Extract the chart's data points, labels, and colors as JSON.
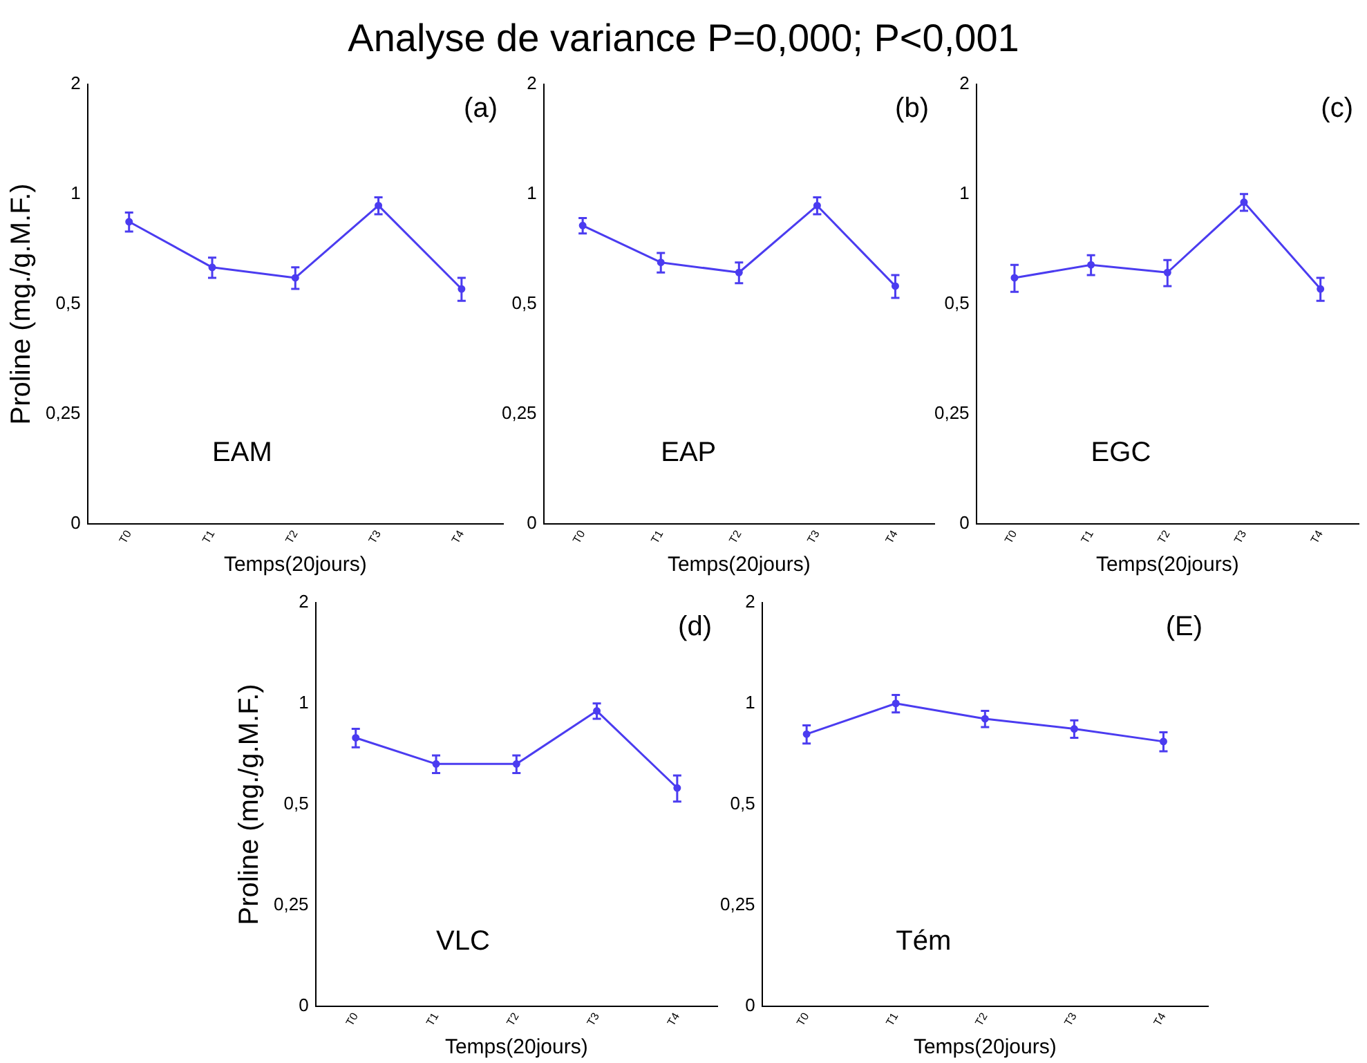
{
  "chart_data": [
    {
      "type": "line",
      "title": "Analyse de variance P=0,000; P<0,001",
      "categories": [
        "T0",
        "T1",
        "T2",
        "T3",
        "T4"
      ],
      "values": [
        0.84,
        0.63,
        0.59,
        0.93,
        0.55
      ],
      "errors": [
        0.05,
        0.04,
        0.04,
        0.05,
        0.04
      ],
      "color": "#4b3cf0",
      "marker": "circle",
      "log": true,
      "ylim": [
        0.125,
        2
      ],
      "yticks": [
        {
          "value": 0.125,
          "label": "0"
        },
        {
          "value": 0.25,
          "label": "0,25"
        },
        {
          "value": 0.5,
          "label": "0,5"
        },
        {
          "value": 1,
          "label": "1"
        },
        {
          "value": 2,
          "label": "2"
        }
      ],
      "xlabel": "Temps(20jours)",
      "ylabel": "Proline (mg./g.M.F.)",
      "annotations": [
        "(a)",
        "EAM"
      ]
    },
    {
      "type": "line",
      "categories": [
        "T0",
        "T1",
        "T2",
        "T3",
        "T4"
      ],
      "values": [
        0.82,
        0.65,
        0.61,
        0.93,
        0.56
      ],
      "errors": [
        0.04,
        0.04,
        0.04,
        0.05,
        0.04
      ],
      "color": "#4b3cf0",
      "marker": "circle",
      "log": true,
      "ylim": [
        0.125,
        2
      ],
      "yticks": [
        {
          "value": 0.125,
          "label": "0"
        },
        {
          "value": 0.25,
          "label": "0,25"
        },
        {
          "value": 0.5,
          "label": "0,5"
        },
        {
          "value": 1,
          "label": "1"
        },
        {
          "value": 2,
          "label": "2"
        }
      ],
      "xlabel": "Temps(20jours)",
      "annotations": [
        "(b)",
        "EAP"
      ]
    },
    {
      "type": "line",
      "categories": [
        "T0",
        "T1",
        "T2",
        "T3",
        "T4"
      ],
      "values": [
        0.59,
        0.64,
        0.61,
        0.95,
        0.55
      ],
      "errors": [
        0.05,
        0.04,
        0.05,
        0.05,
        0.04
      ],
      "color": "#4b3cf0",
      "marker": "circle",
      "log": true,
      "ylim": [
        0.125,
        2
      ],
      "yticks": [
        {
          "value": 0.125,
          "label": "0"
        },
        {
          "value": 0.25,
          "label": "0,25"
        },
        {
          "value": 0.5,
          "label": "0,5"
        },
        {
          "value": 1,
          "label": "1"
        },
        {
          "value": 2,
          "label": "2"
        }
      ],
      "xlabel": "Temps(20jours)",
      "annotations": [
        "(c)",
        "EGC"
      ]
    },
    {
      "type": "line",
      "categories": [
        "T0",
        "T1",
        "T2",
        "T3",
        "T4"
      ],
      "values": [
        0.79,
        0.66,
        0.66,
        0.95,
        0.56
      ],
      "errors": [
        0.05,
        0.04,
        0.04,
        0.05,
        0.05
      ],
      "color": "#4b3cf0",
      "marker": "circle",
      "log": true,
      "ylim": [
        0.125,
        2
      ],
      "yticks": [
        {
          "value": 0.125,
          "label": "0"
        },
        {
          "value": 0.25,
          "label": "0,25"
        },
        {
          "value": 0.5,
          "label": "0,5"
        },
        {
          "value": 1,
          "label": "1"
        },
        {
          "value": 2,
          "label": "2"
        }
      ],
      "xlabel": "Temps(20jours)",
      "ylabel": "Proline (mg./g.M.F.)",
      "annotations": [
        "(d)",
        "VLC"
      ]
    },
    {
      "type": "line",
      "categories": [
        "T0",
        "T1",
        "T2",
        "T3",
        "T4"
      ],
      "values": [
        0.81,
        1.0,
        0.9,
        0.84,
        0.77
      ],
      "errors": [
        0.05,
        0.06,
        0.05,
        0.05,
        0.05
      ],
      "color": "#4b3cf0",
      "marker": "circle",
      "log": true,
      "ylim": [
        0.125,
        2
      ],
      "yticks": [
        {
          "value": 0.125,
          "label": "0"
        },
        {
          "value": 0.25,
          "label": "0,25"
        },
        {
          "value": 0.5,
          "label": "0,5"
        },
        {
          "value": 1,
          "label": "1"
        },
        {
          "value": 2,
          "label": "2"
        }
      ],
      "xlabel": "Temps(20jours)",
      "annotations": [
        "(E)",
        "Tém"
      ]
    }
  ]
}
